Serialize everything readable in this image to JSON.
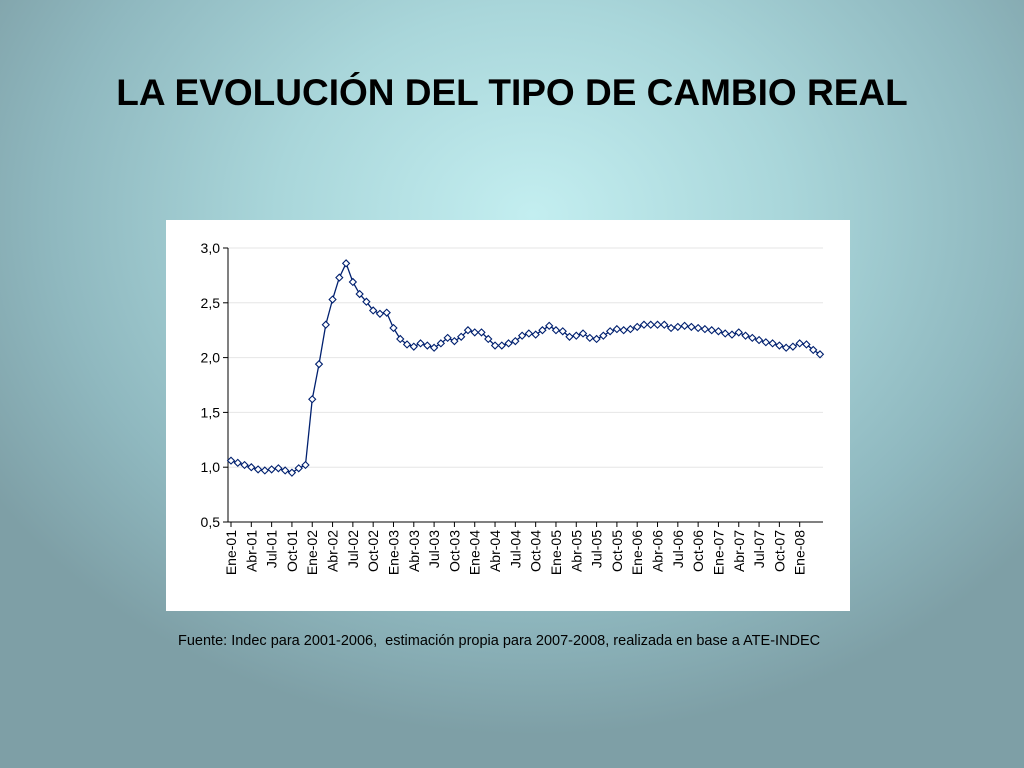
{
  "slide": {
    "title": "LA EVOLUCIÓN DEL TIPO DE CAMBIO REAL",
    "source": "Fuente: Indec para 2001-2006,  estimación propia para 2007-2008, realizada en base a ATE-INDEC"
  },
  "chart_data": {
    "type": "line",
    "title": "",
    "xlabel": "",
    "ylabel": "",
    "ylim": [
      0.5,
      3.0
    ],
    "yticks": [
      "3,0",
      "2,5",
      "2,0",
      "1,5",
      "1,0",
      "0,5"
    ],
    "ytick_values": [
      3.0,
      2.5,
      2.0,
      1.5,
      1.0,
      0.5
    ],
    "grid": true,
    "legend": "none",
    "marker": "diamond",
    "line_color": "#00206f",
    "marker_fill": "#ffffff",
    "xtick_labels": [
      "Ene-01",
      "Abr-01",
      "Jul-01",
      "Oct-01",
      "Ene-02",
      "Abr-02",
      "Jul-02",
      "Oct-02",
      "Ene-03",
      "Abr-03",
      "Jul-03",
      "Oct-03",
      "Ene-04",
      "Abr-04",
      "Jul-04",
      "Oct-04",
      "Ene-05",
      "Abr-05",
      "Jul-05",
      "Oct-05",
      "Ene-06",
      "Abr-06",
      "Jul-06",
      "Oct-06",
      "Ene-07",
      "Abr-07",
      "Jul-07",
      "Oct-07",
      "Ene-08"
    ],
    "x": [
      "Ene-01",
      "Feb-01",
      "Mar-01",
      "Abr-01",
      "May-01",
      "Jun-01",
      "Jul-01",
      "Ago-01",
      "Sep-01",
      "Oct-01",
      "Nov-01",
      "Dic-01",
      "Ene-02",
      "Feb-02",
      "Mar-02",
      "Abr-02",
      "May-02",
      "Jun-02",
      "Jul-02",
      "Ago-02",
      "Sep-02",
      "Oct-02",
      "Nov-02",
      "Dic-02",
      "Ene-03",
      "Feb-03",
      "Mar-03",
      "Abr-03",
      "May-03",
      "Jun-03",
      "Jul-03",
      "Ago-03",
      "Sep-03",
      "Oct-03",
      "Nov-03",
      "Dic-03",
      "Ene-04",
      "Feb-04",
      "Mar-04",
      "Abr-04",
      "May-04",
      "Jun-04",
      "Jul-04",
      "Ago-04",
      "Sep-04",
      "Oct-04",
      "Nov-04",
      "Dic-04",
      "Ene-05",
      "Feb-05",
      "Mar-05",
      "Abr-05",
      "May-05",
      "Jun-05",
      "Jul-05",
      "Ago-05",
      "Sep-05",
      "Oct-05",
      "Nov-05",
      "Dic-05",
      "Ene-06",
      "Feb-06",
      "Mar-06",
      "Abr-06",
      "May-06",
      "Jun-06",
      "Jul-06",
      "Ago-06",
      "Sep-06",
      "Oct-06",
      "Nov-06",
      "Dic-06",
      "Ene-07",
      "Feb-07",
      "Mar-07",
      "Abr-07",
      "May-07",
      "Jun-07",
      "Jul-07",
      "Ago-07",
      "Sep-07",
      "Oct-07",
      "Nov-07",
      "Dic-07",
      "Ene-08",
      "Feb-08",
      "Mar-08",
      "Abr-08"
    ],
    "values": [
      1.06,
      1.04,
      1.02,
      1.0,
      0.98,
      0.97,
      0.98,
      0.99,
      0.97,
      0.95,
      0.99,
      1.02,
      1.62,
      1.94,
      2.3,
      2.53,
      2.73,
      2.86,
      2.69,
      2.58,
      2.51,
      2.43,
      2.4,
      2.41,
      2.27,
      2.17,
      2.12,
      2.1,
      2.13,
      2.11,
      2.09,
      2.13,
      2.18,
      2.15,
      2.19,
      2.25,
      2.23,
      2.23,
      2.17,
      2.11,
      2.11,
      2.13,
      2.15,
      2.2,
      2.22,
      2.21,
      2.25,
      2.29,
      2.25,
      2.24,
      2.19,
      2.2,
      2.22,
      2.18,
      2.17,
      2.2,
      2.24,
      2.26,
      2.25,
      2.26,
      2.28,
      2.3,
      2.3,
      2.3,
      2.3,
      2.27,
      2.28,
      2.29,
      2.28,
      2.27,
      2.26,
      2.25,
      2.24,
      2.22,
      2.21,
      2.23,
      2.2,
      2.18,
      2.16,
      2.14,
      2.13,
      2.11,
      2.09,
      2.1,
      2.13,
      2.12,
      2.07,
      2.03
    ]
  }
}
